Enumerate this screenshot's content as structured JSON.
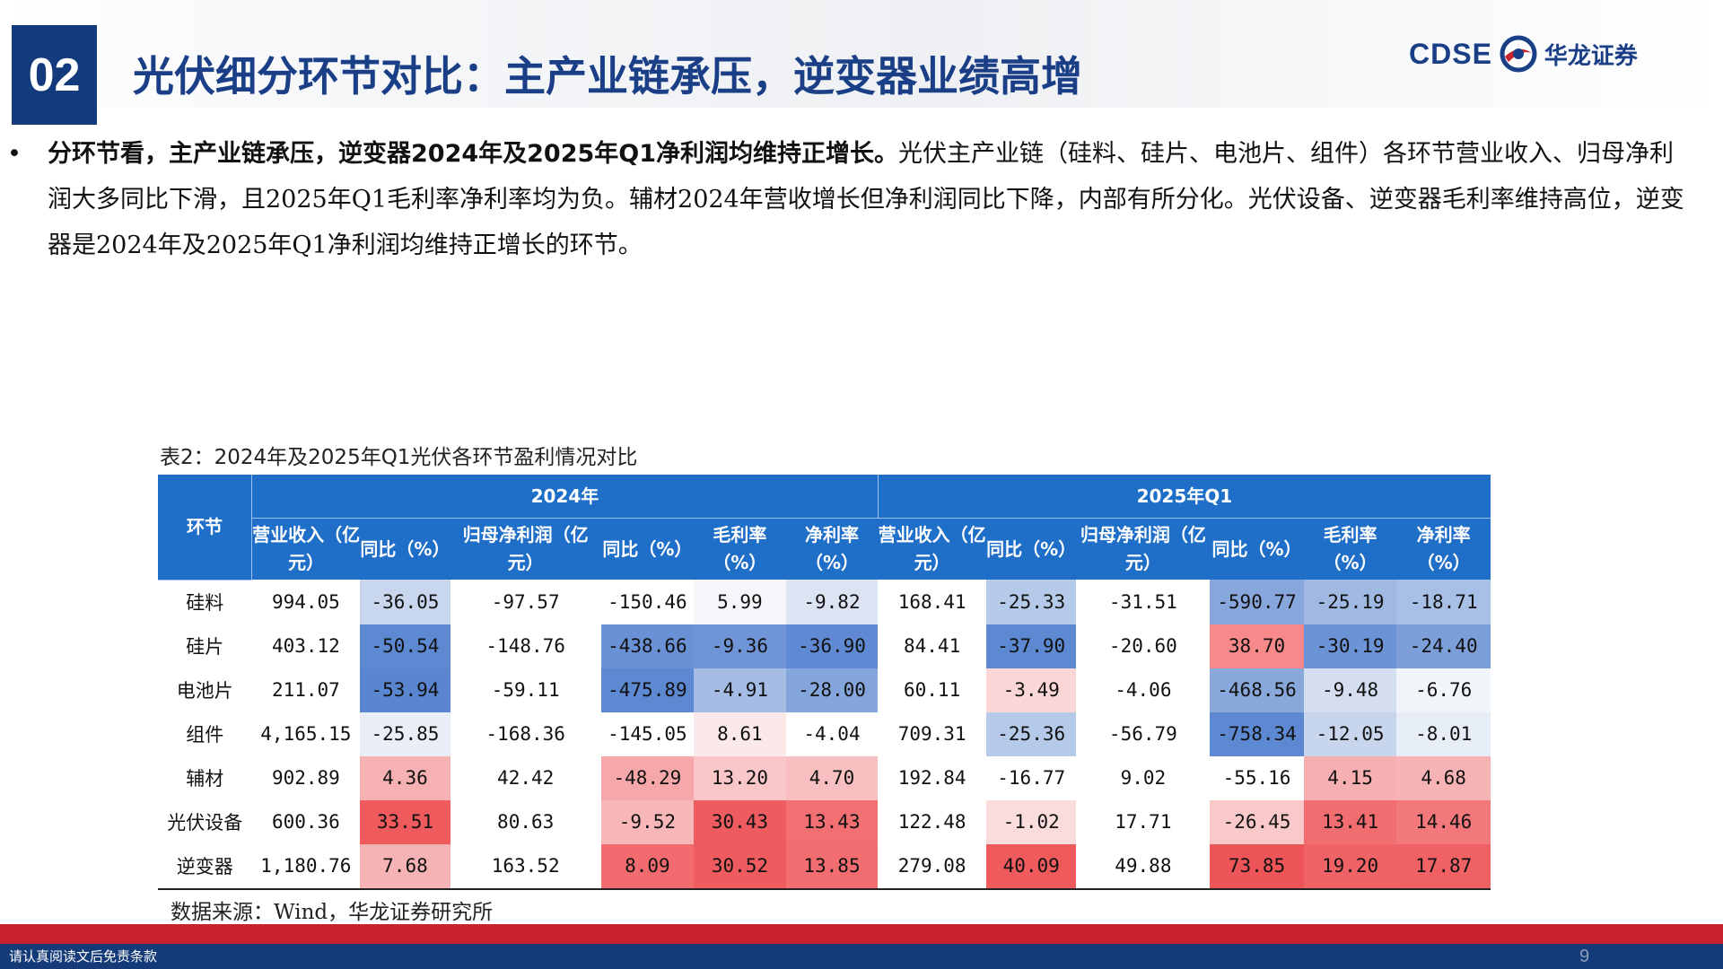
{
  "header": {
    "section_number": "02",
    "title": "光伏细分环节对比：主产业链承压，逆变器业绩高增",
    "logo_en": "CDSE",
    "logo_cn": "华龙证券"
  },
  "bullet": {
    "lead": "分环节看，主产业链承压，逆变器2024年及2025年Q1净利润均维持正增长。",
    "body": "光伏主产业链（硅料、硅片、电池片、组件）各环节营业收入、归母净利润大多同比下滑，且2025年Q1毛利率净利率均为负。辅材2024年营收增长但净利润同比下降，内部有所分化。光伏设备、逆变器毛利率维持高位，逆变器是2024年及2025年Q1净利润均维持正增长的环节。"
  },
  "table": {
    "caption": "表2：2024年及2025年Q1光伏各环节盈利情况对比",
    "row_header": "环节",
    "year_2024": "2024年",
    "year_2025": "2025年Q1",
    "columns": [
      "营业收入（亿元）",
      "同比（%）",
      "归母净利润（亿元）",
      "同比（%）",
      "毛利率（%）",
      "净利率（%）",
      "营业收入（亿元）",
      "同比（%）",
      "归母净利润（亿元）",
      "同比（%）",
      "毛利率（%）",
      "净利率（%）"
    ],
    "rows": [
      {
        "segment": "硅料",
        "cells": [
          "994.05",
          "-36.05",
          "-97.57",
          "-150.46",
          "5.99",
          "-9.82",
          "168.41",
          "-25.33",
          "-31.51",
          "-590.77",
          "-25.19",
          "-18.71"
        ]
      },
      {
        "segment": "硅片",
        "cells": [
          "403.12",
          "-50.54",
          "-148.76",
          "-438.66",
          "-9.36",
          "-36.90",
          "84.41",
          "-37.90",
          "-20.60",
          "38.70",
          "-30.19",
          "-24.40"
        ]
      },
      {
        "segment": "电池片",
        "cells": [
          "211.07",
          "-53.94",
          "-59.11",
          "-475.89",
          "-4.91",
          "-28.00",
          "60.11",
          "-3.49",
          "-4.06",
          "-468.56",
          "-9.48",
          "-6.76"
        ]
      },
      {
        "segment": "组件",
        "cells": [
          "4,165.15",
          "-25.85",
          "-168.36",
          "-145.05",
          "8.61",
          "-4.04",
          "709.31",
          "-25.36",
          "-56.79",
          "-758.34",
          "-12.05",
          "-8.01"
        ]
      },
      {
        "segment": "辅材",
        "cells": [
          "902.89",
          "4.36",
          "42.42",
          "-48.29",
          "13.20",
          "4.70",
          "192.84",
          "-16.77",
          "9.02",
          "-55.16",
          "4.15",
          "4.68"
        ]
      },
      {
        "segment": "光伏设备",
        "cells": [
          "600.36",
          "33.51",
          "80.63",
          "-9.52",
          "30.43",
          "13.43",
          "122.48",
          "-1.02",
          "17.71",
          "-26.45",
          "13.41",
          "14.46"
        ]
      },
      {
        "segment": "逆变器",
        "cells": [
          "1,180.76",
          "7.68",
          "163.52",
          "8.09",
          "30.52",
          "13.85",
          "279.08",
          "40.09",
          "49.88",
          "73.85",
          "19.20",
          "17.87"
        ]
      }
    ],
    "cell_colors": [
      [
        "#ffffff",
        "#c9d7ee",
        "#ffffff",
        "#ffffff",
        "#f4f6fa",
        "#dce4f3",
        "#ffffff",
        "#b5c9e9",
        "#ffffff",
        "#86a6dc",
        "#9fb9e3",
        "#a9c0e6"
      ],
      [
        "#ffffff",
        "#5d89d2",
        "#ffffff",
        "#6a91d5",
        "#6f95d7",
        "#5f8ad3",
        "#ffffff",
        "#5d89d2",
        "#ffffff",
        "#f7898b",
        "#6c93d6",
        "#7c9fda"
      ],
      [
        "#ffffff",
        "#5a86d1",
        "#ffffff",
        "#5d89d2",
        "#a5bde5",
        "#85a6dc",
        "#ffffff",
        "#fbd6d7",
        "#ffffff",
        "#88a8dc",
        "#d4def0",
        "#f1f4f9"
      ],
      [
        "#ffffff",
        "#e9eef7",
        "#ffffff",
        "#ffffff",
        "#fbe8e9",
        "#ffffff",
        "#ffffff",
        "#b5c9e9",
        "#ffffff",
        "#5d89d2",
        "#c7d5ed",
        "#e7edf7"
      ],
      [
        "#ffffff",
        "#f6b1b3",
        "#ffffff",
        "#f5a7a9",
        "#f9c7c8",
        "#f8bfc1",
        "#ffffff",
        "#ffffff",
        "#ffffff",
        "#ffffff",
        "#f6b0b2",
        "#f6b3b5"
      ],
      [
        "#ffffff",
        "#ef5a5d",
        "#ffffff",
        "#f7b6b8",
        "#ef5c5f",
        "#f26f72",
        "#ffffff",
        "#fbdcdd",
        "#ffffff",
        "#f9c9ca",
        "#f26d70",
        "#f3787b"
      ],
      [
        "#ffffff",
        "#f6b3b5",
        "#ffffff",
        "#f26c6f",
        "#ef5c5f",
        "#f26d70",
        "#ffffff",
        "#ef5a5d",
        "#ffffff",
        "#ee5558",
        "#ef6366",
        "#ef6164"
      ]
    ],
    "source": "数据来源：Wind，华龙证券研究所"
  },
  "footer": {
    "disclaimer": "请认真阅读文后免责条款",
    "page_number": "9"
  }
}
